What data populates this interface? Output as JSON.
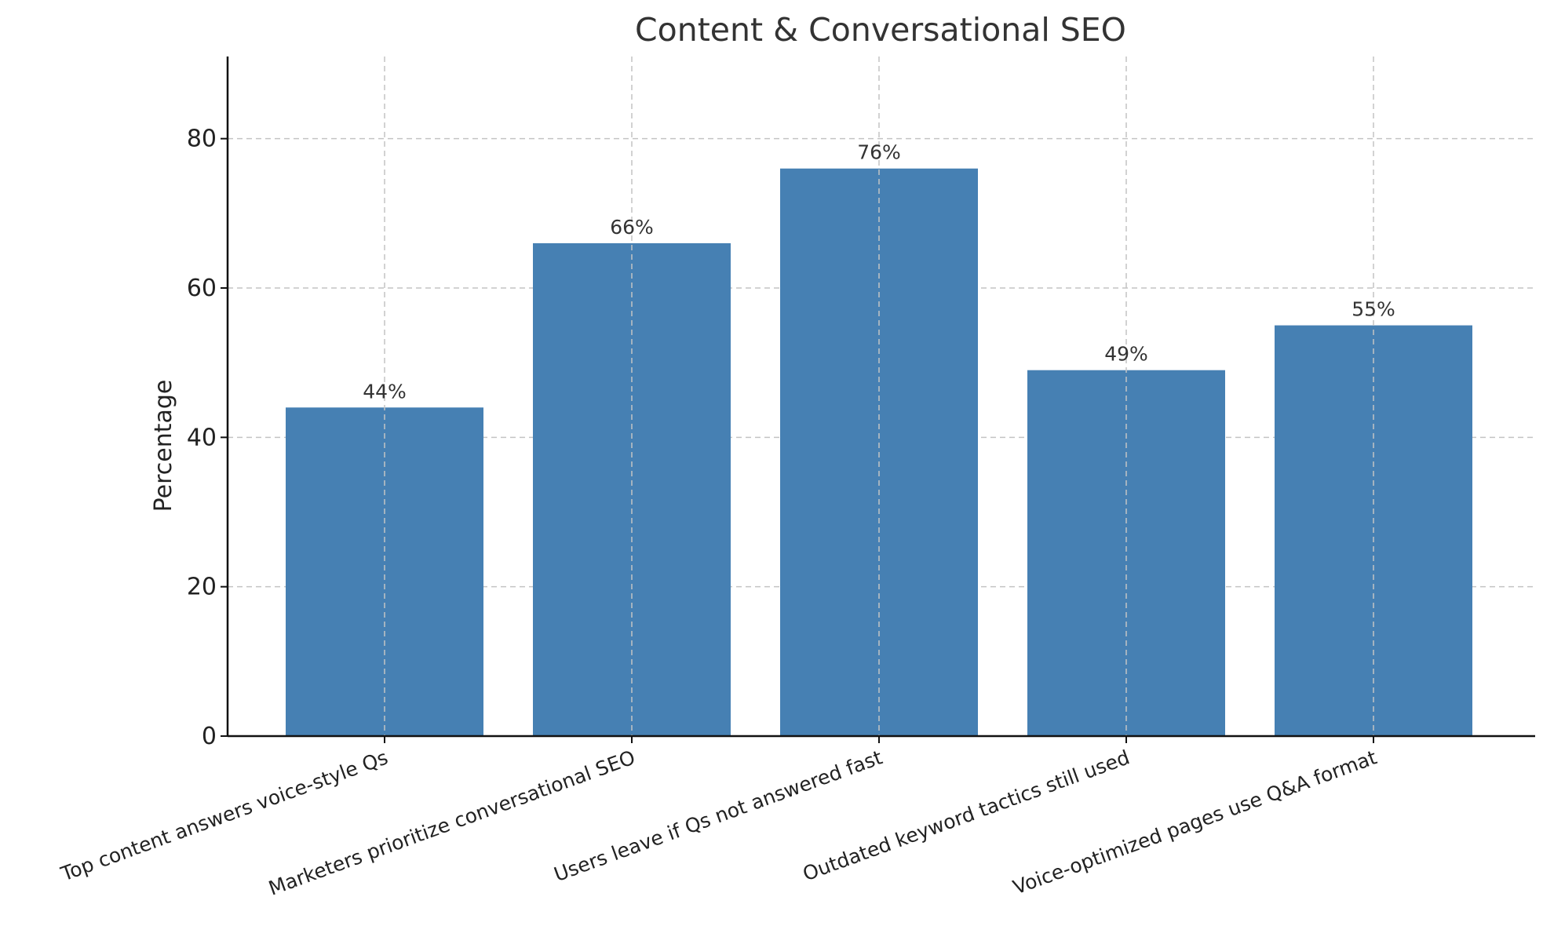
{
  "colors": {
    "bar": "#4680b3"
  },
  "chart_data": {
    "type": "bar",
    "title": "Content & Conversational SEO",
    "xlabel": "",
    "ylabel": "Percentage",
    "categories": [
      "Top content answers voice-style Qs",
      "Marketers prioritize conversational SEO",
      "Users leave if Qs not answered fast",
      "Outdated keyword tactics still used",
      "Voice-optimized pages use Q&A format"
    ],
    "values": [
      44,
      66,
      76,
      49,
      55
    ],
    "data_labels": [
      "44%",
      "66%",
      "76%",
      "49%",
      "55%"
    ],
    "ylim": [
      0,
      91
    ],
    "yticks": [
      0,
      20,
      40,
      60,
      80
    ],
    "grid": true,
    "legend": "none"
  }
}
